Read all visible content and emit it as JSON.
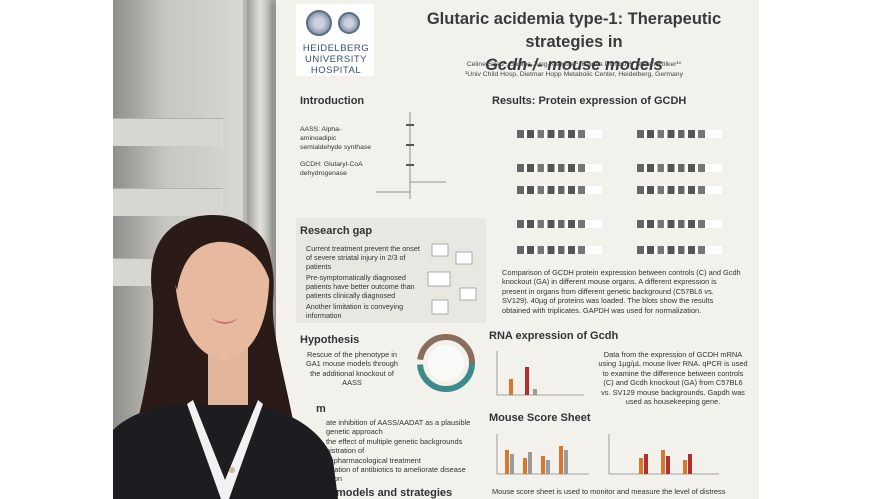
{
  "poster": {
    "title_line1": "Glutaric acidemia type-1: Therapeutic strategies in",
    "title_line2": "Gcdh-/- mouse models",
    "institution_line1": "HEIDELBERG",
    "institution_line2": "UNIVERSITY",
    "institution_line3": "HOSPITAL",
    "authors": "Celine Saad¹, Sabine Jung-Klawitter¹, Bianca Dimitrov¹, Stefan Kölker¹*",
    "affiliation": "¹Univ Child Hosp, Dietmar Hopp Metabolic Center, Heidelberg, Germany",
    "sections": {
      "introduction": "Introduction",
      "results_protein": "Results: Protein expression of GCDH",
      "research_gap": "Research gap",
      "hypothesis": "Hypothesis",
      "rna": "RNA expression of Gcdh",
      "mouse_score": "Mouse Score Sheet",
      "aim_fragment": "m",
      "models_fragment": "models and strategies"
    },
    "intro_labels": {
      "aass": "AASS: Alpha-aminoadipic semialdehyde synthase",
      "gcdh": "GCDH: Glutaryl-CoA dehydrogenase"
    },
    "research_gap_bullets": [
      "Current treatment prevent the onset of severe striatal injury in 2/3 of patients",
      "Pre-symptomatically diagnosed patients have better outcome than patients clinically diagnosed",
      "Another limitation is conveying information"
    ],
    "hypothesis_text": "Rescue of the phenotype in GA1 mouse models through the additional knockout of AASS",
    "protein_caption": "Comparison of GCDH protein expression between controls (C) and Gcdh knockout (GA) in different mouse organs. A different expression is present in organs from different genetic background (C57BL6 vs. SV129). 40µg of proteins was loaded. The blots show the results obtained with triplicates. GAPDH was used for normalization.",
    "rna_caption": "Data from the expression of GCDH mRNA using 1µg/µL mouse liver RNA. qPCR is used to examine the difference between controls (C) and Gcdh knockout (GA) from C57BL6 vs. SV129 mouse backgrounds. Gapdh was used as housekeeping gene.",
    "aim_fragments": [
      "ate inhibition of AASS/AADAT as a plausible",
      "genetic approach",
      "the effect of multiple genetic backgrounds",
      "nistration of",
      "al pharmacological treatment",
      "stration of antibiotics to ameliorate disease",
      "ation"
    ],
    "mouse_score_caption": "Mouse score sheet is used to monitor and measure the level of distress"
  },
  "colors": {
    "poster_bg": "#f2f1ec",
    "title": "#3a3a3a",
    "bar_orange": "#d8782e",
    "bar_red": "#b03030",
    "bar_gray": "#9b9b9b"
  }
}
